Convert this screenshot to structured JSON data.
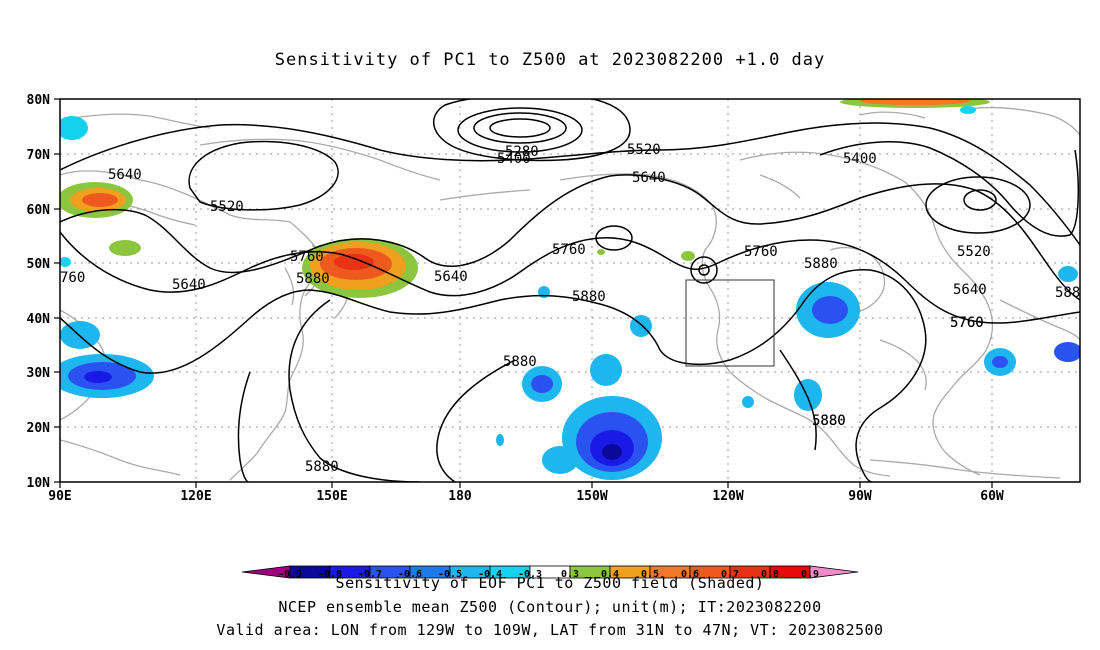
{
  "title": "Sensitivity of PC1 to Z500 at 2023082200 +1.0 day",
  "axes": {
    "lat_labels": [
      "80N",
      "70N",
      "60N",
      "50N",
      "40N",
      "30N",
      "20N",
      "10N"
    ],
    "lon_labels": [
      "90E",
      "120E",
      "150E",
      "180",
      "150W",
      "120W",
      "90W",
      "60W"
    ]
  },
  "contour_labels": [
    "5640",
    "5520",
    "5760",
    "5640",
    "5880",
    "5880",
    "5880",
    "5760",
    "5640",
    "5880",
    "5280",
    "5400",
    "5520",
    "5640",
    "5760",
    "5760",
    "5880",
    "5400",
    "5520",
    "5640",
    "5760",
    "588",
    "5880",
    "5880",
    "760"
  ],
  "valid_area_box": {
    "lon": [
      "129W",
      "109W"
    ],
    "lat": [
      "31N",
      "47N"
    ]
  },
  "colorbar": {
    "levels": [
      "-0.9",
      "-0.8",
      "-0.7",
      "-0.6",
      "-0.5",
      "-0.4",
      "-0.3",
      "0.3",
      "0.4",
      "0.5",
      "0.6",
      "0.7",
      "0.8",
      "0.9"
    ],
    "colors": [
      "#a0007f",
      "#0a0a9a",
      "#1a1ae6",
      "#2a52f0",
      "#1e7ae8",
      "#1eb6ee",
      "#14d2ee",
      "#ffffff",
      "#8cc63f",
      "#f0a01e",
      "#f07828",
      "#ee5a1e",
      "#e83214",
      "#e80a0a",
      "#f08cc8"
    ]
  },
  "captions": {
    "line1": "Sensitivity of EOF PC1 to Z500 field (Shaded)",
    "line2": "NCEP ensemble mean Z500 (Contour); unit(m); IT:2023082200",
    "line3": "Valid area: LON from 129W to 109W, LAT from 31N to 47N; VT: 2023082500"
  }
}
